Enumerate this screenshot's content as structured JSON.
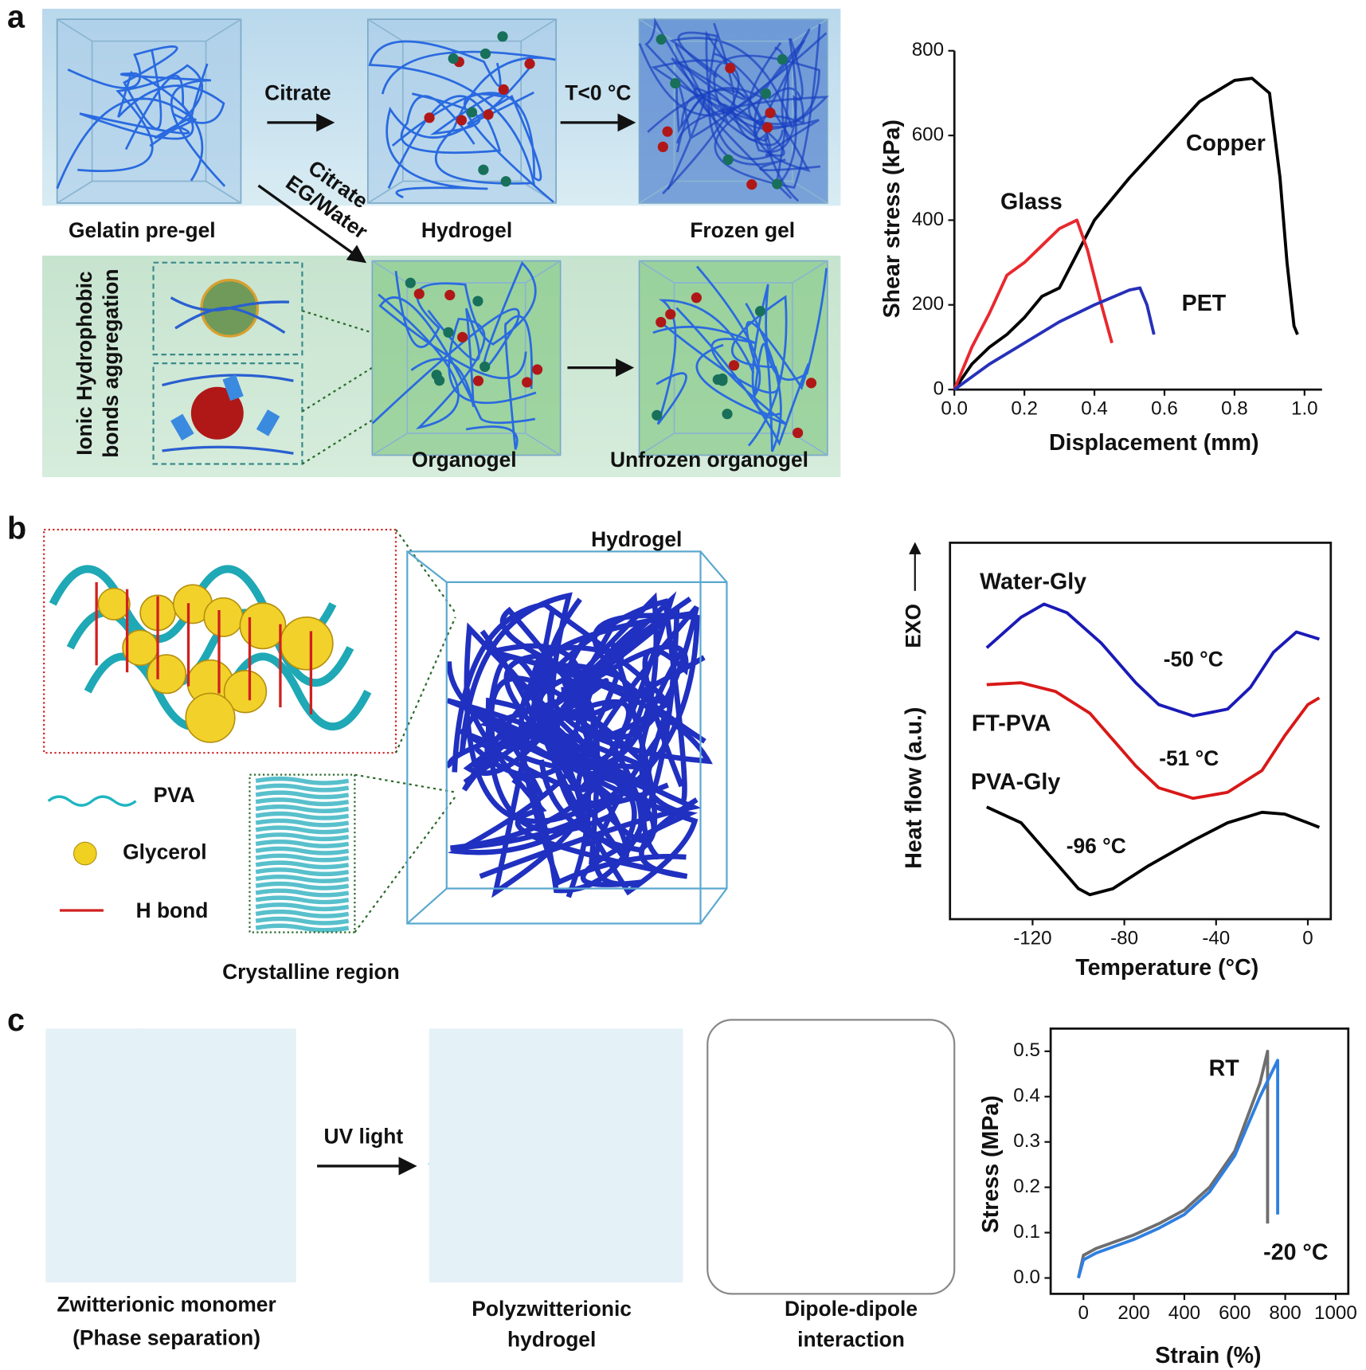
{
  "panel_labels": [
    "a",
    "b",
    "c"
  ],
  "diagram": {
    "a": {
      "arrow_1": "Citrate",
      "arrow_2": "T<0 °C",
      "arrow_3": [
        "Citrate",
        "EG/Water"
      ],
      "states": [
        "Gelatin pre-gel",
        "Hydrogel",
        "Frozen gel",
        "Organogel",
        "Unfrozen organogel"
      ],
      "interactions": [
        "Ionic  Hydrophobic",
        "bonds  aggregation"
      ]
    },
    "b": {
      "title": "Hydrogel",
      "legend": [
        "PVA",
        "Glycerol",
        "H bond"
      ],
      "inset": "Crystalline region"
    },
    "c": {
      "arrow": "UV light",
      "captions": [
        [
          "Zwitterionic monomer",
          "(Phase separation)"
        ],
        [
          "Polyzwitterionic",
          "hydrogel"
        ],
        [
          "Dipole-dipole",
          "interaction"
        ]
      ]
    }
  },
  "chart_data": [
    {
      "type": "line",
      "xlabel": "Displacement (mm)",
      "ylabel": "Shear stress (kPa)",
      "box": false,
      "xlim": [
        0,
        1.05
      ],
      "ylim": [
        0,
        800
      ],
      "xticks": [
        {
          "value": 0,
          "label": "0.0"
        },
        0.2,
        0.4,
        0.6,
        0.8,
        {
          "value": 1,
          "label": "1.0"
        }
      ],
      "yticks": [
        0,
        200,
        400,
        600,
        800
      ],
      "series": [
        {
          "name": "Copper",
          "color": "#000000",
          "x": [
            0,
            0.05,
            0.1,
            0.15,
            0.2,
            0.25,
            0.3,
            0.35,
            0.4,
            0.5,
            0.6,
            0.7,
            0.8,
            0.85,
            0.9,
            0.93,
            0.95,
            0.97,
            0.98
          ],
          "values": [
            0,
            60,
            100,
            130,
            170,
            220,
            240,
            320,
            400,
            500,
            590,
            680,
            730,
            735,
            700,
            500,
            300,
            150,
            130
          ]
        },
        {
          "name": "Glass",
          "color": "#e8282e",
          "x": [
            0,
            0.05,
            0.1,
            0.15,
            0.2,
            0.25,
            0.3,
            0.35,
            0.38,
            0.42,
            0.45
          ],
          "values": [
            0,
            100,
            180,
            270,
            300,
            340,
            380,
            400,
            330,
            200,
            110
          ]
        },
        {
          "name": "PET",
          "color": "#2630b8",
          "x": [
            0,
            0.1,
            0.2,
            0.3,
            0.4,
            0.5,
            0.53,
            0.55,
            0.57
          ],
          "values": [
            0,
            60,
            110,
            160,
            200,
            235,
            240,
            200,
            130
          ]
        }
      ]
    },
    {
      "type": "line",
      "xlabel": "Temperature (°C)",
      "ylabel": "Heat flow (a.u.)",
      "y_arrow_label": "EXO",
      "box": true,
      "xlim": [
        -156,
        10
      ],
      "ylim": [
        0,
        100
      ],
      "xticks": [
        -120,
        -80,
        -40,
        0
      ],
      "yticks": [],
      "annotations": [
        "-50 °C",
        "-51 °C",
        "-96 °C"
      ],
      "series": [
        {
          "name": "Water-Gly",
          "color": "#1a1ab8",
          "x": [
            -140,
            -125,
            -115,
            -105,
            -90,
            -75,
            -65,
            -50,
            -35,
            -25,
            -15,
            -5,
            5
          ],
          "values": [
            72.1,
            80.2,
            83.7,
            81.4,
            73.3,
            62.8,
            57.0,
            54.0,
            55.8,
            61.6,
            70.9,
            76.3,
            74.4
          ]
        },
        {
          "name": "FT-PVA",
          "color": "#d81818",
          "x": [
            -140,
            -125,
            -110,
            -95,
            -85,
            -75,
            -65,
            -50,
            -35,
            -20,
            -10,
            0,
            5
          ],
          "values": [
            62.3,
            62.8,
            60.5,
            54.7,
            47.7,
            40.7,
            34.9,
            32.1,
            33.7,
            39.5,
            48.8,
            57.0,
            58.8
          ]
        },
        {
          "name": "PVA-Gly",
          "color": "#000000",
          "x": [
            -140,
            -125,
            -110,
            -100,
            -95,
            -85,
            -70,
            -50,
            -35,
            -20,
            -10,
            0,
            5
          ],
          "values": [
            29.8,
            25.6,
            15.1,
            8.1,
            6.5,
            8.1,
            14.0,
            20.9,
            25.6,
            28.4,
            27.9,
            25.6,
            24.4
          ]
        }
      ]
    },
    {
      "type": "line",
      "xlabel": "Strain (%)",
      "ylabel": "Stress (MPa)",
      "box": true,
      "xlim": [
        -130,
        1050
      ],
      "ylim": [
        -0.035,
        0.55
      ],
      "xticks": [
        0,
        200,
        400,
        600,
        800,
        1000
      ],
      "yticks": [
        {
          "value": 0,
          "label": "0.0"
        },
        0.1,
        0.2,
        0.3,
        0.4,
        0.5
      ],
      "series": [
        {
          "name": "RT",
          "color": "#6e6e6e",
          "x": [
            -20,
            0,
            50,
            100,
            200,
            300,
            400,
            500,
            600,
            700,
            730,
            730,
            730
          ],
          "values": [
            0,
            0.05,
            0.065,
            0.075,
            0.095,
            0.12,
            0.15,
            0.2,
            0.28,
            0.43,
            0.5,
            0.3,
            0.12
          ]
        },
        {
          "name": "-20 °C",
          "color": "#2f7fe0",
          "x": [
            -20,
            0,
            50,
            100,
            200,
            300,
            400,
            500,
            600,
            700,
            770,
            770,
            770
          ],
          "values": [
            0,
            0.04,
            0.055,
            0.065,
            0.085,
            0.11,
            0.14,
            0.19,
            0.27,
            0.4,
            0.48,
            0.3,
            0.14
          ]
        }
      ]
    }
  ]
}
